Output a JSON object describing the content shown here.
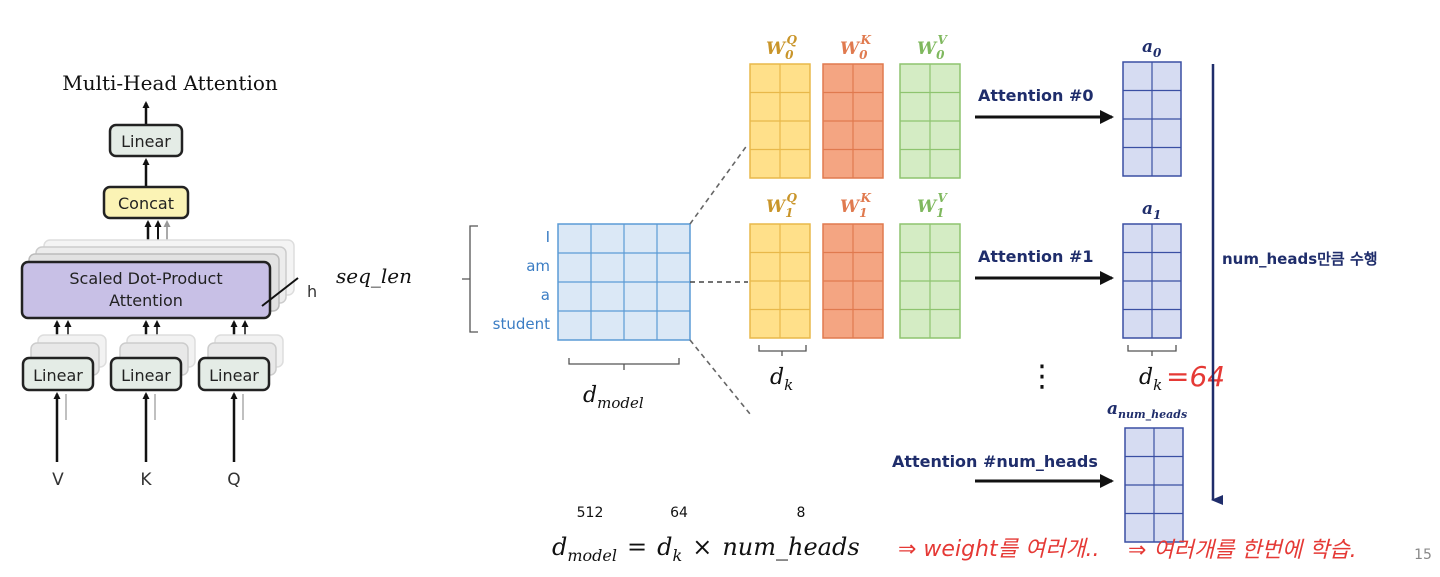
{
  "left": {
    "title": "Multi-Head Attention",
    "linear_top": "Linear",
    "concat": "Concat",
    "sdpa_line1": "Scaled Dot-Product",
    "sdpa_line2": "Attention",
    "h": "h",
    "linear_v": "Linear",
    "linear_k": "Linear",
    "linear_q": "Linear",
    "input_v": "V",
    "input_k": "K",
    "input_q": "Q"
  },
  "right": {
    "seq_len": "seq_len",
    "tokens": [
      "I",
      "am",
      "a",
      "student"
    ],
    "d_model": "d",
    "d_model_sub": "model",
    "d_k": "d",
    "d_k_sub": "k",
    "d_k_64": "=64",
    "w_labels": {
      "q0": "W",
      "q0_sub": "0",
      "q0_sup": "Q",
      "k0": "W",
      "k0_sub": "0",
      "k0_sup": "K",
      "v0": "W",
      "v0_sub": "0",
      "v0_sup": "V",
      "q1": "W",
      "q1_sub": "1",
      "q1_sup": "Q",
      "k1": "W",
      "k1_sub": "1",
      "k1_sup": "K",
      "v1": "W",
      "v1_sub": "1",
      "v1_sup": "V"
    },
    "attention0": "Attention #0",
    "attention1": "Attention #1",
    "attention_n": "Attention #num_heads",
    "a0": "a",
    "a0_sub": "0",
    "a1": "a",
    "a1_sub": "1",
    "an": "a",
    "an_sub": "num_heads",
    "vdots": "⋮",
    "num_heads_label": "num_heads만큼 수행"
  },
  "formula": {
    "n512": "512",
    "n64": "64",
    "n8": "8",
    "d": "d",
    "d_sub": "model",
    "eq": "=",
    "dk": "d",
    "dk_sub": "k",
    "times": "×",
    "num_heads": "num_heads",
    "note1": "⇒ weight를 여러개..",
    "note2": "⇒ 여러개를 한번에 학습."
  },
  "page_number": "15",
  "colors": {
    "input_fill": "#dbe8f6",
    "input_stroke": "#5b9bd5",
    "q_fill": "#ffe08a",
    "q_stroke": "#e8b84a",
    "k_fill": "#f4a582",
    "k_stroke": "#e07a4f",
    "v_fill": "#d4ecc4",
    "v_stroke": "#8ec46f",
    "a_fill": "#d6dcf2",
    "a_stroke": "#3a4fa3",
    "navy": "#1f2d6b",
    "red_note": "#e53935",
    "sdpa_fill": "#c8c0e6",
    "concat_fill": "#fbf3b5",
    "linear_fill": "#e4ece6"
  }
}
